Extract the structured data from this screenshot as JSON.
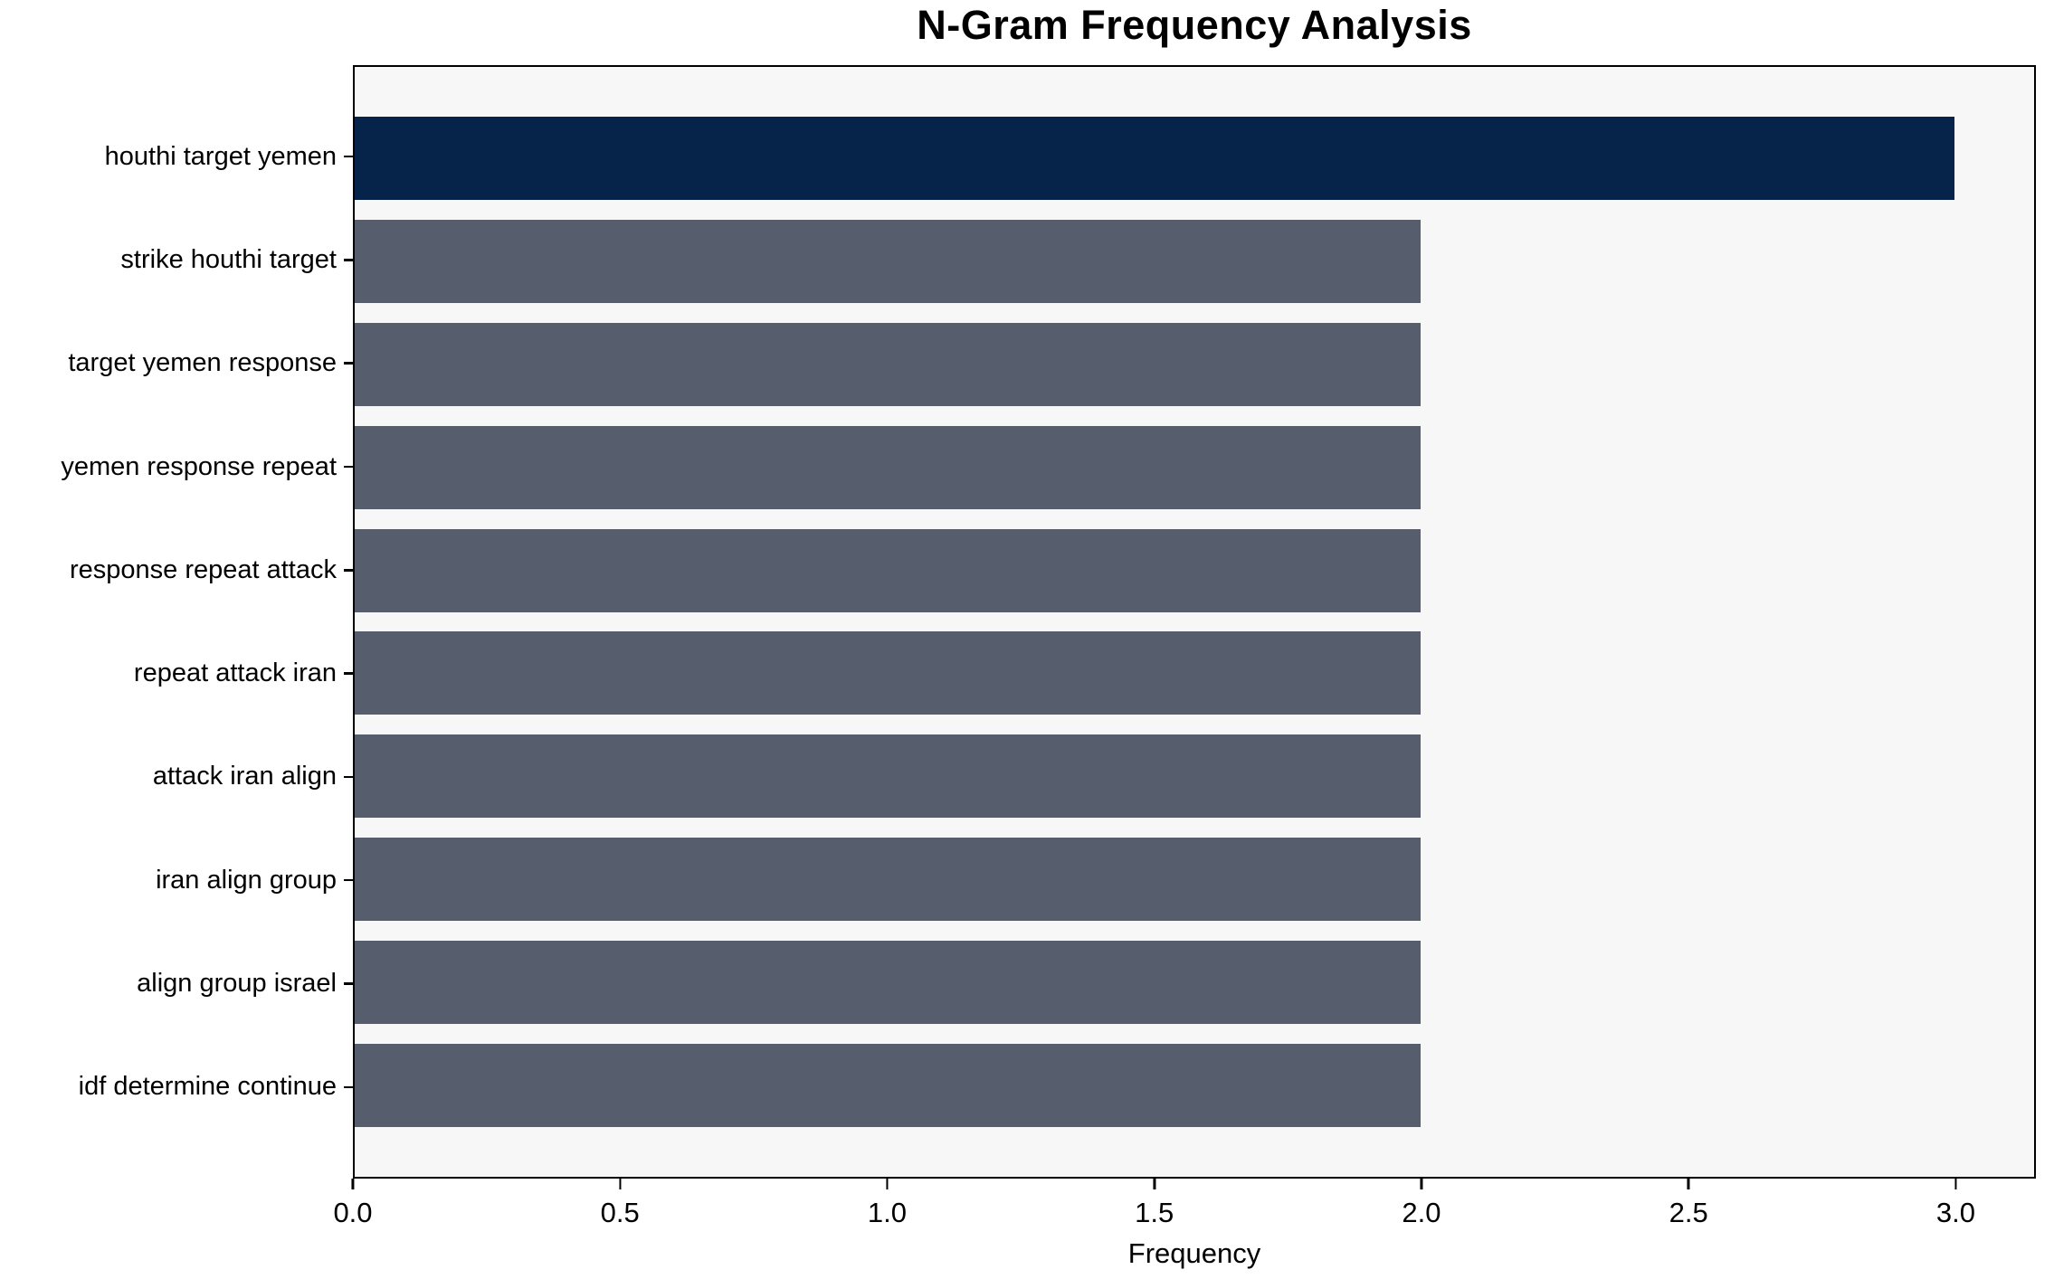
{
  "chart_data": {
    "type": "bar",
    "orientation": "horizontal",
    "title": "N-Gram Frequency Analysis",
    "xlabel": "Frequency",
    "ylabel": "",
    "categories": [
      "houthi target yemen",
      "strike houthi target",
      "target yemen response",
      "yemen response repeat",
      "response repeat attack",
      "repeat attack iran",
      "attack iran align",
      "iran align group",
      "align group israel",
      "idf determine continue"
    ],
    "values": [
      3,
      2,
      2,
      2,
      2,
      2,
      2,
      2,
      2,
      2
    ],
    "x_tick_values": [
      0.0,
      0.5,
      1.0,
      1.5,
      2.0,
      2.5,
      3.0
    ],
    "x_tick_labels": [
      "0.0",
      "0.5",
      "1.0",
      "1.5",
      "2.0",
      "2.5",
      "3.0"
    ],
    "xlim": [
      0,
      3.15
    ],
    "grid": false,
    "legend": false,
    "highlight_index": 0,
    "colors": {
      "highlight_bar": "#06234A",
      "default_bar": "#565D6C",
      "plot_background": "#F7F7F7",
      "figure_background": "#FFFFFF",
      "axis": "#000000"
    }
  }
}
